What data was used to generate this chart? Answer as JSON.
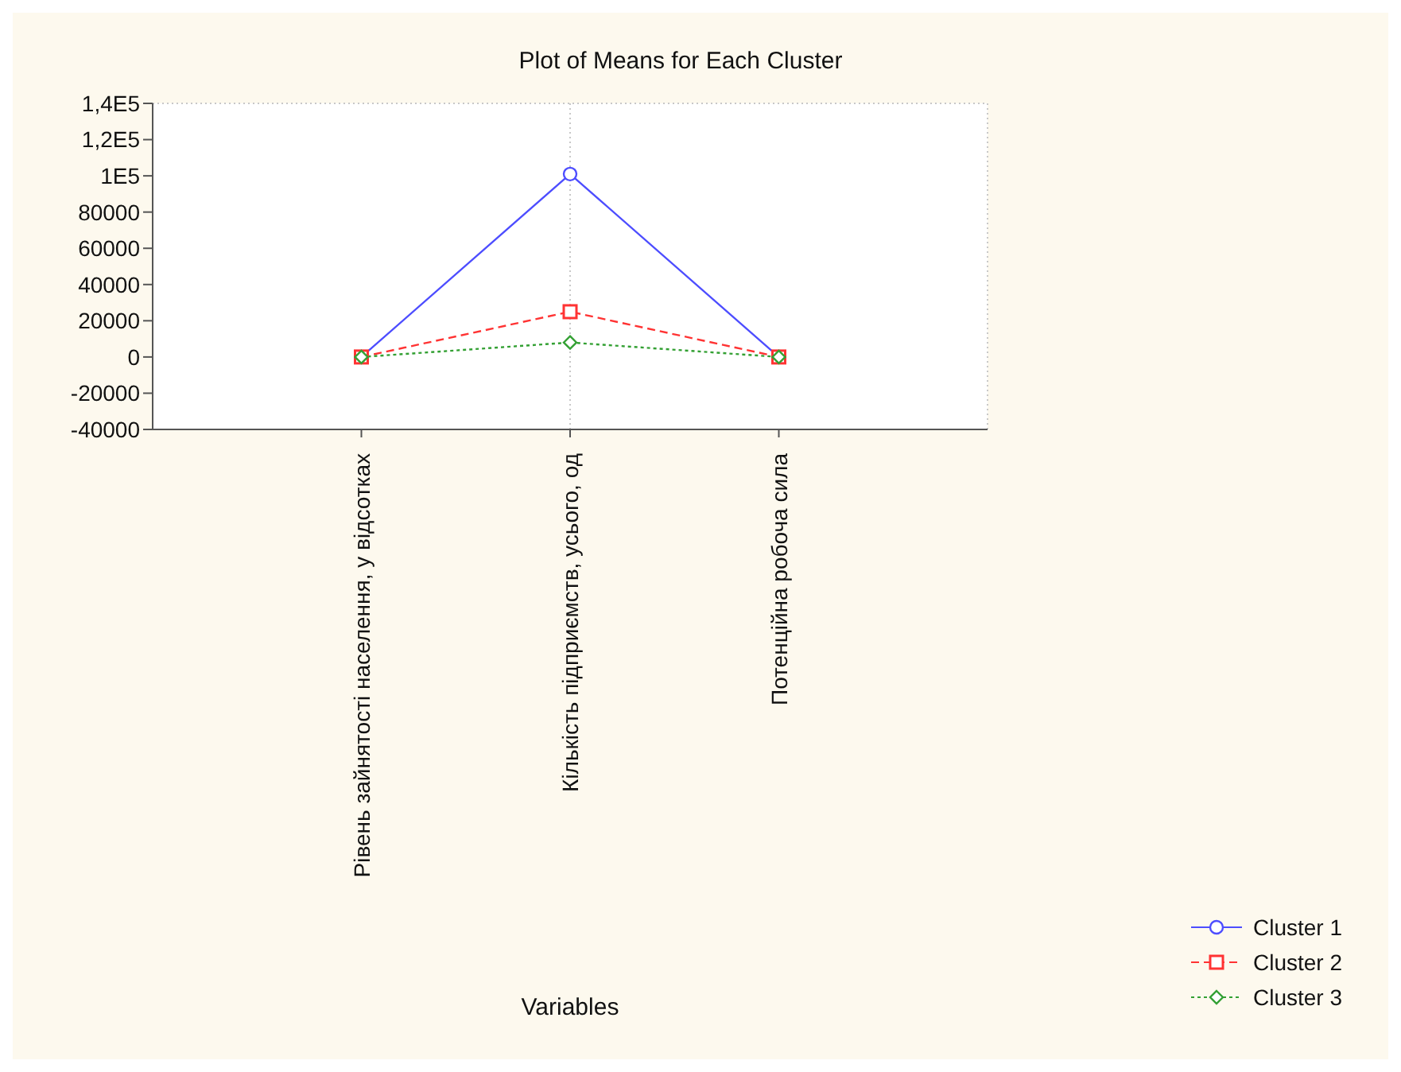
{
  "chart_data": {
    "type": "line",
    "title": "Plot of Means for Each Cluster",
    "xlabel": "Variables",
    "categories": [
      "Рівень зайнятості населення, у відсотках",
      "Кількість підприємств, усього, од",
      "Потенційна робоча сила"
    ],
    "series": [
      {
        "name": "Cluster  1",
        "color": "#4d4dff",
        "values": [
          0,
          101000,
          0
        ],
        "marker": "circle",
        "line_style": "solid"
      },
      {
        "name": "Cluster  2",
        "color": "#ff3333",
        "values": [
          0,
          25000,
          0
        ],
        "marker": "square",
        "line_style": "dashed"
      },
      {
        "name": "Cluster  3",
        "color": "#33a033",
        "values": [
          0,
          8000,
          0
        ],
        "marker": "diamond",
        "line_style": "dotted"
      }
    ],
    "ylim": [
      -40000,
      140000
    ],
    "yticks": [
      -40000,
      -20000,
      0,
      20000,
      40000,
      60000,
      80000,
      {
        "value": 100000,
        "label": "1E5"
      },
      {
        "value": 120000,
        "label": "1,2E5"
      },
      {
        "value": 140000,
        "label": "1,4E5"
      }
    ],
    "grid": true,
    "legend": "bottom right"
  }
}
